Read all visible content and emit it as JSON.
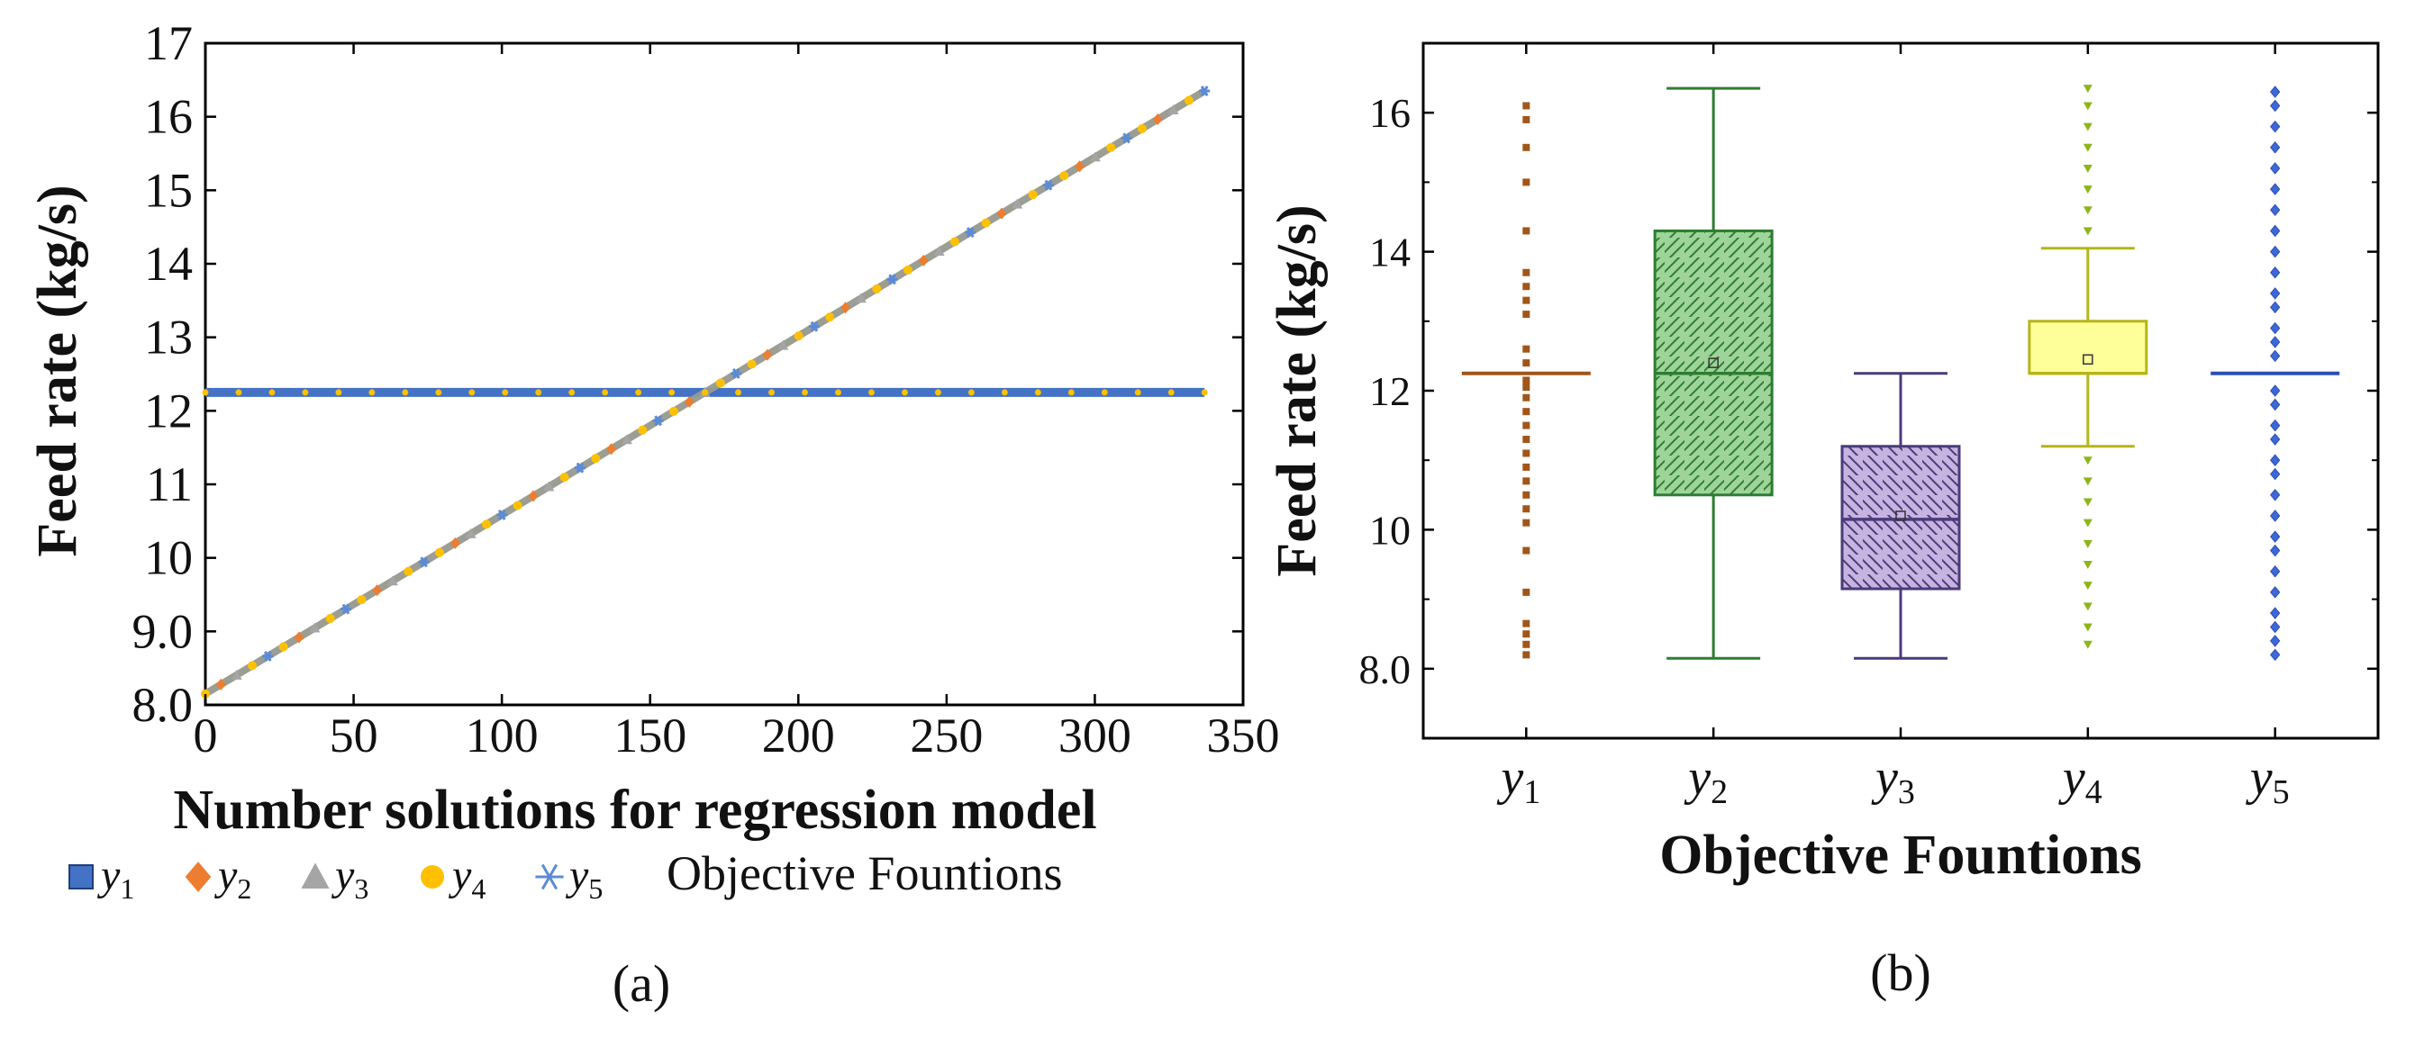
{
  "chart_data": [
    {
      "panel": "(a)",
      "type": "scatter",
      "title": "",
      "xlabel": "Number solutions for regression model",
      "ylabel": "Feed rate (kg/s)",
      "xlim": [
        0,
        350
      ],
      "ylim": [
        8.0,
        17
      ],
      "xticks": [
        "0",
        "50",
        "100",
        "150",
        "200",
        "250",
        "300",
        "350"
      ],
      "yticks": [
        "8.0",
        "9.0",
        "10",
        "11",
        "12",
        "13",
        "14",
        "15",
        "16",
        "17"
      ],
      "x_range_points": [
        0,
        337
      ],
      "series": [
        {
          "name": "y1",
          "sub": "1",
          "marker": "square",
          "color": "#4472c4",
          "pattern": "constant",
          "value": 12.25
        },
        {
          "name": "y2",
          "sub": "2",
          "marker": "diamond",
          "color": "#ed7d31",
          "pattern": "linear",
          "start": 8.15,
          "end": 16.35
        },
        {
          "name": "y3",
          "sub": "3",
          "marker": "triangle",
          "color": "#a5a5a5",
          "pattern": "linear",
          "start": 8.15,
          "end": 16.35
        },
        {
          "name": "y4",
          "sub": "4",
          "marker": "circle",
          "color": "#ffc000",
          "pattern": "linear",
          "start": 8.15,
          "end": 16.35
        },
        {
          "name": "y5",
          "sub": "5",
          "marker": "star",
          "color": "#5b8bd6",
          "pattern": "linear",
          "start": 8.15,
          "end": 16.35
        }
      ],
      "legend_title": "Objective Fountions",
      "legend_position": "bottom"
    },
    {
      "panel": "(b)",
      "type": "box",
      "title": "",
      "xlabel": "Objective Fountions",
      "ylabel": "Feed rate (kg/s)",
      "ylim": [
        7.0,
        17.0
      ],
      "yticks": [
        "8.0",
        "10",
        "12",
        "14",
        "16"
      ],
      "categories": [
        "y1",
        "y2",
        "y3",
        "y4",
        "y5"
      ],
      "boxes": [
        {
          "name": "y1",
          "sub": "1",
          "color": "#a0561a",
          "fill": "none",
          "min": 12.25,
          "q1": 12.25,
          "median": 12.25,
          "q3": 12.25,
          "max": 12.25,
          "mean": 12.25,
          "outliers": [
            8.2,
            8.35,
            8.5,
            8.65,
            9.1,
            9.7,
            10.1,
            10.3,
            10.5,
            10.7,
            10.9,
            11.1,
            11.3,
            11.5,
            11.7,
            11.9,
            12.05,
            12.15,
            12.4,
            12.6,
            13.1,
            13.3,
            13.5,
            13.7,
            14.3,
            15.0,
            15.5,
            15.9,
            16.1
          ]
        },
        {
          "name": "y2",
          "sub": "2",
          "color": "#2e7d32",
          "fill": "#9ed49a",
          "hatch": "forward",
          "min": 8.15,
          "q1": 10.5,
          "median": 12.25,
          "q3": 14.3,
          "max": 16.35,
          "mean": 12.4,
          "outliers": []
        },
        {
          "name": "y3",
          "sub": "3",
          "color": "#4b3b7a",
          "fill": "#c7b3e0",
          "hatch": "back",
          "min": 8.15,
          "q1": 9.15,
          "median": 10.15,
          "q3": 11.2,
          "max": 12.25,
          "mean": 10.2,
          "outliers": []
        },
        {
          "name": "y4",
          "sub": "4",
          "color": "#b5b51a",
          "fill": "#ffff99",
          "hatch": "none",
          "min": 11.2,
          "q1": 12.25,
          "median": 12.25,
          "q3": 13.0,
          "max": 14.05,
          "mean": 12.45,
          "outliers": [
            8.35,
            8.6,
            8.9,
            9.2,
            9.5,
            9.8,
            10.1,
            10.4,
            10.7,
            11.0,
            14.3,
            14.6,
            14.9,
            15.2,
            15.5,
            15.8,
            16.1,
            16.35
          ]
        },
        {
          "name": "y5",
          "sub": "5",
          "color": "#2b4fb3",
          "fill": "none",
          "min": 12.25,
          "q1": 12.25,
          "median": 12.25,
          "q3": 12.25,
          "max": 12.25,
          "mean": 12.25,
          "outliers": [
            8.2,
            8.4,
            8.6,
            8.8,
            9.1,
            9.4,
            9.7,
            9.9,
            10.2,
            10.5,
            10.8,
            11.0,
            11.3,
            11.5,
            11.8,
            12.0,
            12.5,
            12.7,
            12.9,
            13.2,
            13.4,
            13.7,
            14.0,
            14.3,
            14.6,
            14.9,
            15.2,
            15.5,
            15.8,
            16.1,
            16.3
          ]
        }
      ]
    }
  ],
  "panel_labels": {
    "a": "(a)",
    "b": "(b)"
  }
}
